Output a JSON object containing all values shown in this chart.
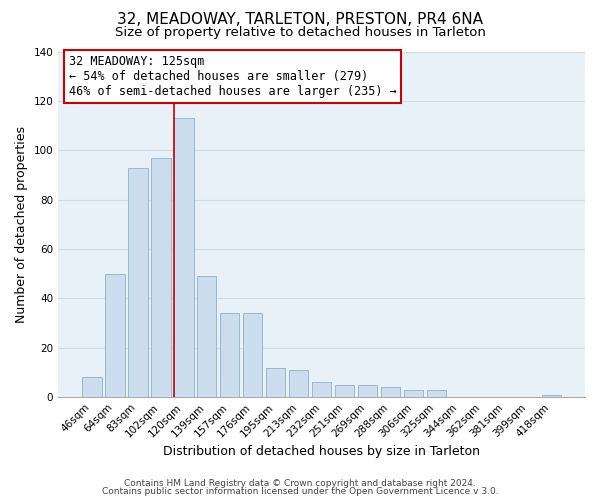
{
  "title": "32, MEADOWAY, TARLETON, PRESTON, PR4 6NA",
  "subtitle": "Size of property relative to detached houses in Tarleton",
  "xlabel": "Distribution of detached houses by size in Tarleton",
  "ylabel": "Number of detached properties",
  "categories": [
    "46sqm",
    "64sqm",
    "83sqm",
    "102sqm",
    "120sqm",
    "139sqm",
    "157sqm",
    "176sqm",
    "195sqm",
    "213sqm",
    "232sqm",
    "251sqm",
    "269sqm",
    "288sqm",
    "306sqm",
    "325sqm",
    "344sqm",
    "362sqm",
    "381sqm",
    "399sqm",
    "418sqm"
  ],
  "values": [
    8,
    50,
    93,
    97,
    113,
    49,
    34,
    34,
    12,
    11,
    6,
    5,
    5,
    4,
    3,
    3,
    0,
    0,
    0,
    0,
    1
  ],
  "bar_color": "#ccdded",
  "bar_edge_color": "#9ab8cc",
  "highlight_index": 4,
  "vline_color": "#cc0000",
  "ylim": [
    0,
    140
  ],
  "yticks": [
    0,
    20,
    40,
    60,
    80,
    100,
    120,
    140
  ],
  "annotation_text_line1": "32 MEADOWAY: 125sqm",
  "annotation_text_line2": "← 54% of detached houses are smaller (279)",
  "annotation_text_line3": "46% of semi-detached houses are larger (235) →",
  "footer_line1": "Contains HM Land Registry data © Crown copyright and database right 2024.",
  "footer_line2": "Contains public sector information licensed under the Open Government Licence v 3.0.",
  "background_color": "#ffffff",
  "grid_color": "#ccdde8",
  "title_fontsize": 11,
  "subtitle_fontsize": 9.5,
  "axis_label_fontsize": 9,
  "tick_fontsize": 7.5,
  "footer_fontsize": 6.5
}
